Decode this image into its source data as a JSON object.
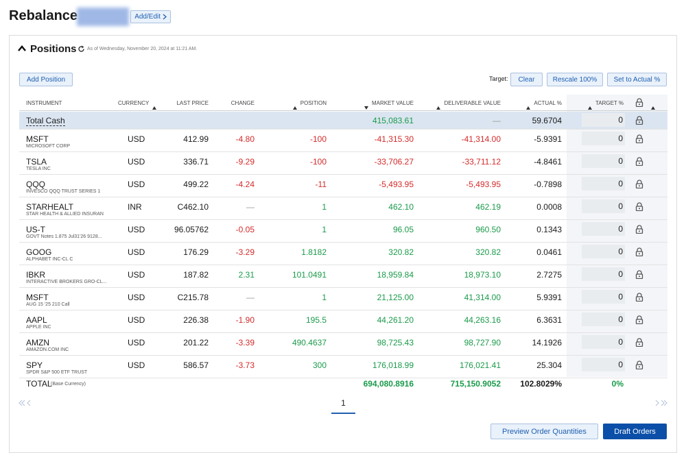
{
  "header": {
    "title": "Rebalance",
    "add_edit": "Add/Edit"
  },
  "positions": {
    "title": "Positions",
    "as_of": "As of Wednesday, November 20, 2024 at 11:21 AM."
  },
  "toolbar": {
    "add_position": "Add Position",
    "target_label": "Target:",
    "clear": "Clear",
    "rescale": "Rescale 100%",
    "set_to_actual": "Set to Actual %"
  },
  "table": {
    "columns": [
      "INSTRUMENT",
      "CURRENCY",
      "LAST PRICE",
      "CHANGE",
      "POSITION",
      "MARKET VALUE",
      "DELIVERABLE VALUE",
      "ACTUAL %",
      "TARGET %"
    ],
    "cash_row": {
      "name": "Total Cash",
      "market_value": "415,083.61",
      "deliverable_value": "—",
      "actual": "59.6704",
      "target": "0"
    },
    "rows": [
      {
        "symbol": "MSFT",
        "description": "MICROSOFT CORP",
        "currency": "USD",
        "last_price": "412.99",
        "change": "-4.80",
        "position": "-100",
        "market_value": "-41,315.30",
        "deliverable_value": "-41,314.00",
        "actual": "-5.9391",
        "target": "0"
      },
      {
        "symbol": "TSLA",
        "description": "TESLA INC",
        "currency": "USD",
        "last_price": "336.71",
        "change": "-9.29",
        "position": "-100",
        "market_value": "-33,706.27",
        "deliverable_value": "-33,711.12",
        "actual": "-4.8461",
        "target": "0"
      },
      {
        "symbol": "QQQ",
        "description": "INVESCO QQQ TRUST SERIES 1",
        "currency": "USD",
        "last_price": "499.22",
        "change": "-4.24",
        "position": "-11",
        "market_value": "-5,493.95",
        "deliverable_value": "-5,493.95",
        "actual": "-0.7898",
        "target": "0"
      },
      {
        "symbol": "STARHEALT",
        "description": "STAR HEALTH & ALLIED INSURAN",
        "currency": "INR",
        "last_price": "C462.10",
        "change": "—",
        "position": "1",
        "market_value": "462.10",
        "deliverable_value": "462.19",
        "actual": "0.0008",
        "target": "0"
      },
      {
        "symbol": "US-T",
        "description": "GOVT Notes 1.875 Jul31'26 9128...",
        "currency": "USD",
        "last_price": "96.05762",
        "change": "-0.05",
        "position": "1",
        "market_value": "96.05",
        "deliverable_value": "960.50",
        "actual": "0.1343",
        "target": "0"
      },
      {
        "symbol": "GOOG",
        "description": "ALPHABET INC-CL C",
        "currency": "USD",
        "last_price": "176.29",
        "change": "-3.29",
        "position": "1.8182",
        "market_value": "320.82",
        "deliverable_value": "320.82",
        "actual": "0.0461",
        "target": "0"
      },
      {
        "symbol": "IBKR",
        "description": "INTERACTIVE BROKERS GRO-CL...",
        "currency": "USD",
        "last_price": "187.82",
        "change": "2.31",
        "position": "101.0491",
        "market_value": "18,959.84",
        "deliverable_value": "18,973.10",
        "actual": "2.7275",
        "target": "0"
      },
      {
        "symbol": "MSFT",
        "description": "AUG 15 '25 210 Call",
        "currency": "USD",
        "last_price": "C215.78",
        "change": "—",
        "position": "1",
        "market_value": "21,125.00",
        "deliverable_value": "41,314.00",
        "actual": "5.9391",
        "target": "0"
      },
      {
        "symbol": "AAPL",
        "description": "APPLE INC",
        "currency": "USD",
        "last_price": "226.38",
        "change": "-1.90",
        "position": "195.5",
        "market_value": "44,261.20",
        "deliverable_value": "44,263.16",
        "actual": "6.3631",
        "target": "0"
      },
      {
        "symbol": "AMZN",
        "description": "AMAZON.COM INC",
        "currency": "USD",
        "last_price": "201.22",
        "change": "-3.39",
        "position": "490.4637",
        "market_value": "98,725.43",
        "deliverable_value": "98,727.90",
        "actual": "14.1926",
        "target": "0"
      },
      {
        "symbol": "SPY",
        "description": "SPDR S&P 500 ETF TRUST",
        "currency": "USD",
        "last_price": "586.57",
        "change": "-3.73",
        "position": "300",
        "market_value": "176,018.99",
        "deliverable_value": "176,021.41",
        "actual": "25.304",
        "target": "0"
      }
    ],
    "total": {
      "label": "TOTAL",
      "note": "(Base Currency)",
      "market_value": "694,080.8916",
      "deliverable_value": "715,150.9052",
      "actual": "102.8029%",
      "target": "0%"
    }
  },
  "pagination": {
    "page": "1"
  },
  "footer": {
    "preview": "Preview Order Quantities",
    "draft": "Draft Orders"
  }
}
